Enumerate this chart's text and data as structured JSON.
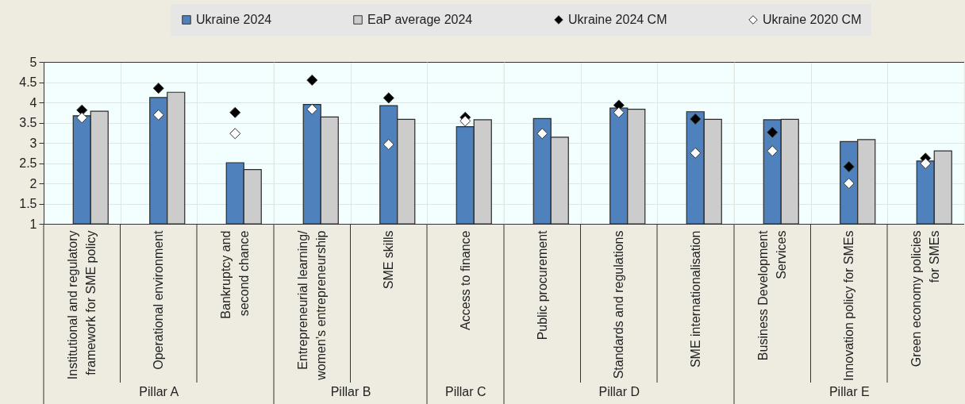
{
  "chart_data": [
    {
      "type": "bar",
      "xlabel": "Pillar A",
      "categories": [
        "Institutional and regulatory\nframework for SME policy",
        "Operational environment",
        "Bankruptcy and\nsecond chance"
      ],
      "series": [
        {
          "name": "Ukraine 2024",
          "color": "#4f81bd",
          "values": [
            3.67,
            4.12,
            2.51
          ]
        },
        {
          "name": "EaP average 2024",
          "color": "#cccccc",
          "values": [
            3.78,
            4.25,
            2.34
          ]
        },
        {
          "name": "Ukraine 2024 CM",
          "type": "scatter",
          "color": "#000000",
          "values": [
            3.81,
            4.35,
            3.75
          ]
        },
        {
          "name": "Ukraine 2020 CM",
          "type": "scatter",
          "color": "#ffffff",
          "values": [
            3.62,
            3.69,
            3.23
          ]
        }
      ],
      "ylim": [
        1,
        5
      ],
      "yticks": [
        1,
        1.5,
        2,
        2.5,
        3,
        3.5,
        4,
        4.5,
        5
      ],
      "grid": true,
      "legend": "top",
      "marker": "diamond"
    },
    {
      "type": "bar",
      "xlabel": "Pillar B",
      "categories": [
        "Entrepreneurial learning/\nwomen’s entrepreneurship",
        "SME skills"
      ],
      "series": [
        {
          "color": "#4f81bd",
          "values": [
            3.95,
            3.92
          ]
        },
        {
          "color": "#cccccc",
          "values": [
            3.64,
            3.58
          ]
        },
        {
          "type": "scatter",
          "color": "#000000",
          "values": [
            4.55,
            4.11
          ]
        },
        {
          "type": "scatter",
          "color": "#ffffff",
          "values": [
            3.83,
            2.96
          ]
        }
      ],
      "ylim": [
        1,
        5
      ],
      "yticks": [
        1,
        1.5,
        2,
        2.5,
        3,
        3.5,
        4,
        4.5,
        5
      ],
      "grid": true,
      "marker": "diamond",
      "tick_labels": "x"
    },
    {
      "type": "bar",
      "xlabel": "Pillar C",
      "categories": [
        "Access to finance"
      ],
      "series": [
        {
          "color": "#4f81bd",
          "values": [
            3.4
          ]
        },
        {
          "color": "#cccccc",
          "values": [
            3.57
          ]
        },
        {
          "type": "scatter",
          "color": "#000000",
          "values": [
            3.63
          ]
        },
        {
          "type": "scatter",
          "color": "#ffffff",
          "values": [
            3.54
          ]
        }
      ],
      "ylim": [
        1,
        5
      ],
      "yticks": [
        1,
        1.5,
        2,
        2.5,
        3,
        3.5,
        4,
        4.5,
        5
      ],
      "grid": true,
      "marker": "diamond",
      "tick_labels": "x"
    },
    {
      "type": "bar",
      "xlabel": "Pillar D",
      "categories": [
        "Public procurement",
        "Standards and regulations",
        "SME internationalisation"
      ],
      "series": [
        {
          "color": "#4f81bd",
          "values": [
            3.6,
            3.86,
            3.77
          ]
        },
        {
          "color": "#cccccc",
          "values": [
            3.14,
            3.83,
            3.58
          ]
        },
        {
          "type": "scatter",
          "color": "#000000",
          "values": [
            null,
            3.93,
            3.59
          ]
        },
        {
          "type": "scatter",
          "color": "#ffffff",
          "values": [
            3.23,
            3.75,
            2.75
          ]
        }
      ],
      "ylim": [
        1,
        5
      ],
      "yticks": [
        1,
        1.5,
        2,
        2.5,
        3,
        3.5,
        4,
        4.5,
        5
      ],
      "grid": true,
      "marker": "diamond",
      "tick_labels": "x"
    },
    {
      "type": "bar",
      "xlabel": "Pillar E",
      "categories": [
        "Business Development\nServices",
        "Innovation policy for SMEs",
        "Green economy policies\nfor SMEs"
      ],
      "series": [
        {
          "color": "#4f81bd",
          "values": [
            3.57,
            3.03,
            2.55
          ]
        },
        {
          "color": "#cccccc",
          "values": [
            3.58,
            3.08,
            2.8
          ]
        },
        {
          "type": "scatter",
          "color": "#000000",
          "values": [
            3.26,
            2.41,
            2.62
          ]
        },
        {
          "type": "scatter",
          "color": "#ffffff",
          "values": [
            2.8,
            2.0,
            2.49
          ]
        }
      ],
      "ylim": [
        1,
        5
      ],
      "yticks": [
        1,
        1.5,
        2,
        2.5,
        3,
        3.5,
        4,
        4.5,
        5
      ],
      "grid": true,
      "marker": "diamond",
      "tick_labels": "x"
    }
  ]
}
